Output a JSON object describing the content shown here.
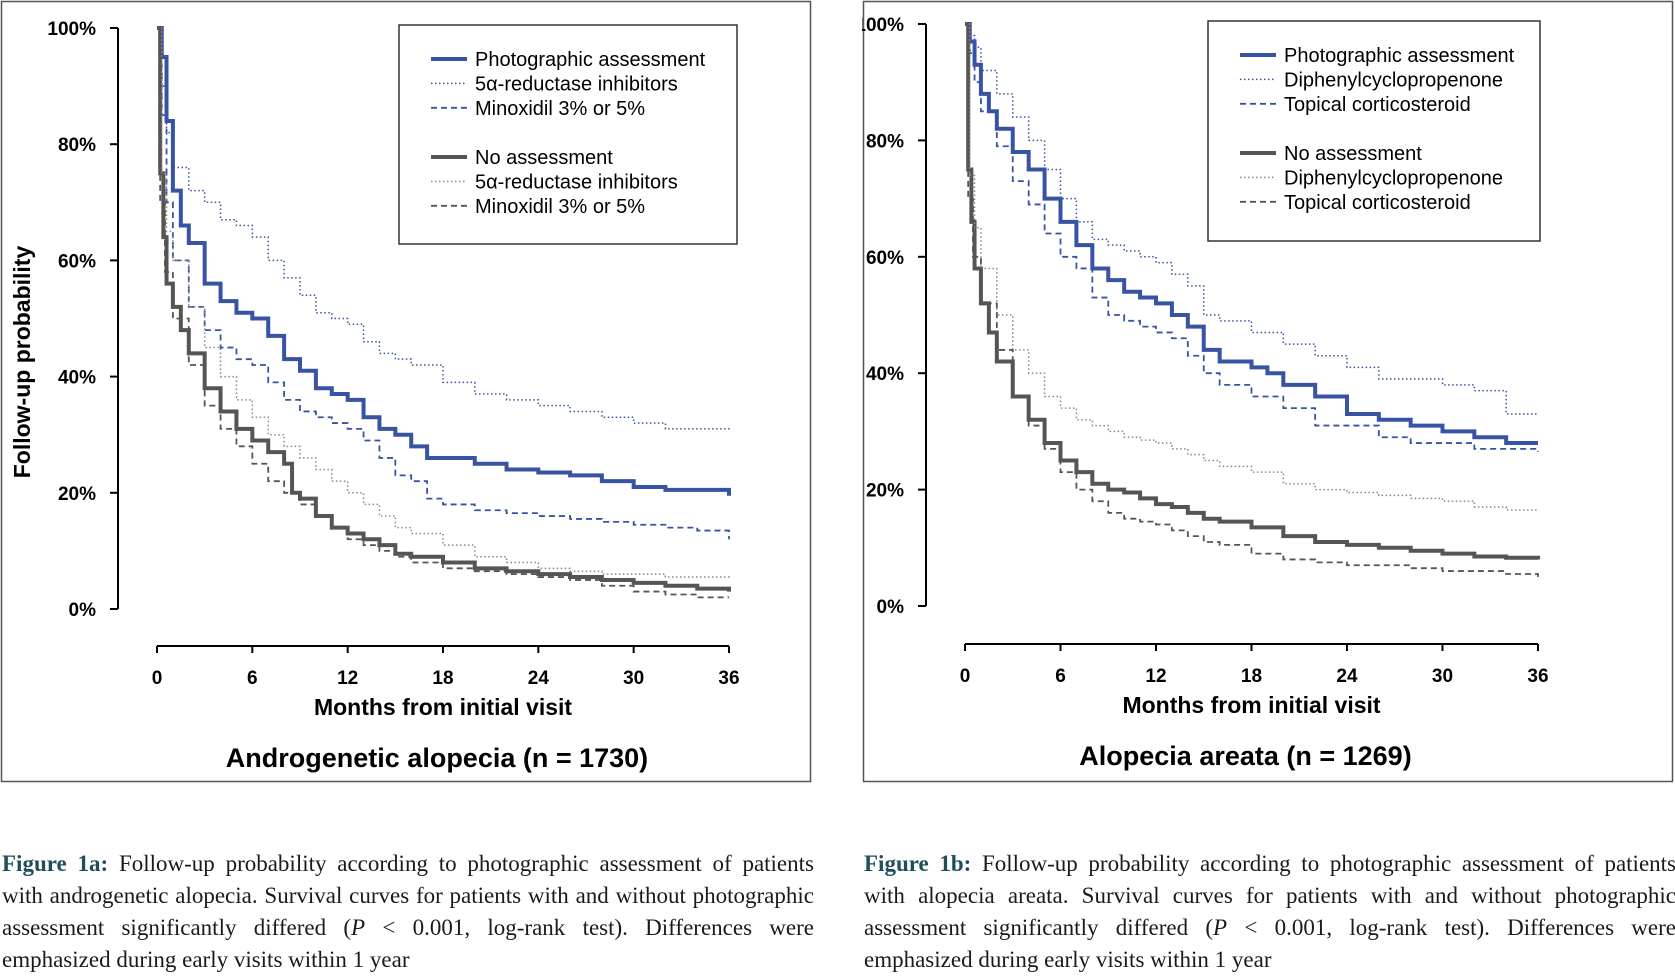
{
  "chart_data": [
    {
      "type": "line",
      "title": "Androgenetic alopecia (n = 1730)",
      "xlabel": "Months from initial visit",
      "ylabel": "Follow-up probability",
      "xlim": [
        0,
        36
      ],
      "ylim": [
        0,
        100
      ],
      "x_ticks": [
        "0",
        "6",
        "12",
        "18",
        "24",
        "30",
        "36"
      ],
      "y_ticks": [
        "0%",
        "20%",
        "40%",
        "60%",
        "80%",
        "100%"
      ],
      "grid": false,
      "legend_position": "top-right",
      "legend_groups": [
        {
          "label": "Photographic assessment",
          "items": [
            "5α-reductase inhibitors",
            "Minoxidil 3% or 5%"
          ]
        },
        {
          "label": "No assessment",
          "items": [
            "5α-reductase inhibitors",
            "Minoxidil 3% or 5%"
          ]
        }
      ],
      "series": [
        {
          "name": "Photographic assessment",
          "color": "#3953a4",
          "style": "solid",
          "width": 4,
          "x": [
            0,
            0.3,
            0.6,
            1,
            1.5,
            2,
            3,
            4,
            5,
            6,
            7,
            8,
            9,
            10,
            11,
            12,
            13,
            14,
            15,
            16,
            17,
            18,
            20,
            22,
            24,
            26,
            28,
            30,
            32,
            34,
            36
          ],
          "y": [
            100,
            95,
            84,
            72,
            66,
            63,
            56,
            53,
            51,
            50,
            47,
            43,
            41,
            38,
            37,
            36,
            33,
            31,
            30,
            28,
            26,
            26,
            25,
            24,
            23.5,
            23,
            22,
            21,
            20.5,
            20.5,
            19.5
          ]
        },
        {
          "name": "5α-reductase inhibitors",
          "color": "#3953a4",
          "style": "dotted",
          "width": 1.5,
          "x": [
            0,
            0.3,
            0.6,
            1,
            2,
            3,
            4,
            5,
            6,
            7,
            8,
            9,
            10,
            11,
            12,
            13,
            14,
            15,
            16,
            18,
            20,
            22,
            24,
            26,
            28,
            30,
            32,
            34,
            36
          ],
          "y": [
            100,
            90,
            82,
            76,
            72,
            70,
            67,
            66,
            64,
            60,
            57,
            54,
            51,
            50,
            49,
            46,
            44,
            43,
            42,
            39,
            37,
            36,
            35,
            34,
            33,
            32,
            31,
            31,
            30.5
          ]
        },
        {
          "name": "Minoxidil 3% or 5%",
          "color": "#3953a4",
          "style": "dashed",
          "width": 1.8,
          "x": [
            0,
            0.3,
            0.6,
            1,
            2,
            3,
            4,
            5,
            6,
            7,
            8,
            9,
            10,
            11,
            12,
            13,
            14,
            15,
            16,
            17,
            18,
            20,
            22,
            24,
            26,
            28,
            30,
            32,
            34,
            36
          ],
          "y": [
            100,
            85,
            70,
            60,
            52,
            48,
            45,
            43,
            42,
            39,
            36,
            34,
            33,
            32,
            31,
            29,
            26,
            23,
            22,
            19,
            18,
            17,
            16.5,
            16,
            15.5,
            15,
            14.5,
            14,
            13.5,
            12
          ]
        },
        {
          "name": "No assessment",
          "color": "#555555",
          "style": "solid",
          "width": 4,
          "x": [
            0,
            0.2,
            0.4,
            0.6,
            1,
            1.5,
            2,
            3,
            4,
            5,
            6,
            7,
            8,
            8.5,
            9,
            10,
            11,
            12,
            13,
            14,
            15,
            16,
            18,
            20,
            22,
            24,
            26,
            28,
            30,
            32,
            34,
            36
          ],
          "y": [
            100,
            75,
            64,
            56,
            52,
            48,
            44,
            38,
            34,
            31,
            29,
            27,
            25,
            20,
            19,
            16,
            14,
            13,
            12,
            11,
            9.5,
            9,
            8,
            7,
            6.5,
            6,
            5.5,
            5,
            4.5,
            4,
            3.5,
            3
          ]
        },
        {
          "name": "5α-reductase inhibitors",
          "color": "#888888",
          "style": "dotted",
          "width": 1.5,
          "x": [
            0,
            0.3,
            0.6,
            1,
            2,
            3,
            4,
            5,
            6,
            7,
            8,
            9,
            10,
            11,
            12,
            13,
            14,
            15,
            16,
            18,
            20,
            22,
            24,
            26,
            28,
            30,
            32,
            34,
            36
          ],
          "y": [
            100,
            75,
            65,
            60,
            52,
            45,
            40,
            36,
            33,
            30,
            28,
            26,
            24,
            22,
            20,
            18,
            16,
            14,
            13,
            11,
            9,
            8,
            7,
            6.5,
            6,
            6,
            5.5,
            5.5,
            5
          ]
        },
        {
          "name": "Minoxidil 3% or 5%",
          "color": "#555555",
          "style": "dashed",
          "width": 1.8,
          "x": [
            0,
            0.2,
            0.5,
            1,
            2,
            3,
            4,
            5,
            6,
            7,
            8,
            9,
            10,
            11,
            12,
            13,
            14,
            15,
            16,
            18,
            20,
            22,
            24,
            26,
            28,
            30,
            32,
            34,
            36
          ],
          "y": [
            100,
            70,
            58,
            50,
            42,
            35,
            31,
            28,
            25,
            22,
            20,
            18,
            16,
            14,
            12,
            11,
            10,
            9,
            8,
            7,
            6.5,
            6,
            5.5,
            5,
            4,
            3,
            2.5,
            2,
            2
          ]
        }
      ]
    },
    {
      "type": "line",
      "title": "Alopecia areata (n = 1269)",
      "xlabel": "Months from initial visit",
      "ylabel": "Follow-up probability",
      "xlim": [
        0,
        36
      ],
      "ylim": [
        0,
        100
      ],
      "x_ticks": [
        "0",
        "6",
        "12",
        "18",
        "24",
        "30",
        "36"
      ],
      "y_ticks": [
        "0%",
        "20%",
        "40%",
        "60%",
        "80%",
        "100%"
      ],
      "grid": false,
      "legend_position": "top-right",
      "legend_groups": [
        {
          "label": "Photographic assessment",
          "items": [
            "Diphenylcyclopropenone",
            "Topical corticosteroid"
          ]
        },
        {
          "label": "No assessment",
          "items": [
            "Diphenylcyclopropenone",
            "Topical corticosteroid"
          ]
        }
      ],
      "series": [
        {
          "name": "Photographic assessment",
          "color": "#3953a4",
          "style": "solid",
          "width": 4,
          "x": [
            0,
            0.3,
            0.6,
            1,
            1.5,
            2,
            3,
            4,
            5,
            6,
            7,
            8,
            9,
            10,
            11,
            12,
            13,
            14,
            15,
            16,
            18,
            19,
            20,
            22,
            24,
            26,
            28,
            30,
            32,
            34,
            36
          ],
          "y": [
            100,
            97,
            93,
            88,
            85,
            82,
            78,
            75,
            70,
            66,
            62,
            58,
            56,
            54,
            53,
            52,
            50,
            48,
            44,
            42,
            41,
            40,
            38,
            36,
            33,
            32,
            31,
            30,
            29,
            28,
            28
          ]
        },
        {
          "name": "Diphenylcyclopropenone",
          "color": "#3953a4",
          "style": "dotted",
          "width": 1.5,
          "x": [
            0,
            0.3,
            0.6,
            1,
            2,
            3,
            4,
            5,
            6,
            7,
            8,
            9,
            10,
            11,
            12,
            13,
            14,
            15,
            16,
            18,
            20,
            22,
            24,
            26,
            28,
            30,
            32,
            34,
            36
          ],
          "y": [
            100,
            98,
            96,
            92,
            88,
            84,
            80,
            75,
            70,
            66,
            63,
            62,
            61,
            60,
            59,
            57,
            55,
            50,
            49,
            47,
            45,
            43,
            41,
            39,
            39,
            38,
            37,
            33,
            33
          ]
        },
        {
          "name": "Topical corticosteroid",
          "color": "#3953a4",
          "style": "dashed",
          "width": 1.8,
          "x": [
            0,
            0.3,
            0.6,
            1,
            2,
            3,
            4,
            5,
            6,
            7,
            8,
            9,
            10,
            11,
            12,
            13,
            14,
            15,
            16,
            18,
            20,
            22,
            24,
            26,
            28,
            30,
            32,
            34,
            36
          ],
          "y": [
            100,
            95,
            90,
            85,
            79,
            73,
            69,
            64,
            60,
            58,
            53,
            50,
            49,
            48,
            47,
            46,
            43,
            40,
            38,
            36,
            34,
            31,
            31,
            29,
            28,
            28,
            27,
            27,
            26.5
          ]
        },
        {
          "name": "No assessment",
          "color": "#555555",
          "style": "solid",
          "width": 4,
          "x": [
            0,
            0.2,
            0.4,
            0.6,
            1,
            1.5,
            2,
            3,
            4,
            5,
            6,
            7,
            8,
            9,
            10,
            11,
            12,
            13,
            14,
            15,
            16,
            18,
            20,
            22,
            24,
            26,
            28,
            30,
            32,
            34,
            36
          ],
          "y": [
            100,
            75,
            66,
            58,
            52,
            47,
            42,
            36,
            32,
            28,
            25,
            23,
            21,
            20,
            19.5,
            18.5,
            17.5,
            17,
            16,
            15,
            14.5,
            13.5,
            12,
            11,
            10.5,
            10,
            9.5,
            9,
            8.5,
            8.3,
            8
          ]
        },
        {
          "name": "Diphenylcyclopropenone",
          "color": "#888888",
          "style": "dotted",
          "width": 1.5,
          "x": [
            0,
            0.3,
            0.6,
            1,
            2,
            3,
            4,
            5,
            6,
            7,
            8,
            9,
            10,
            11,
            12,
            13,
            14,
            15,
            16,
            18,
            20,
            22,
            24,
            26,
            28,
            30,
            32,
            34,
            36
          ],
          "y": [
            100,
            74,
            65,
            58,
            50,
            44,
            40,
            36,
            34,
            32,
            31,
            30,
            29,
            28.5,
            28,
            27,
            26,
            25,
            24,
            23,
            21,
            20,
            19.5,
            19,
            18.5,
            18,
            17,
            16.5,
            16.5
          ]
        },
        {
          "name": "Topical corticosteroid",
          "color": "#555555",
          "style": "dashed",
          "width": 1.8,
          "x": [
            0,
            0.2,
            0.5,
            1,
            2,
            3,
            4,
            5,
            6,
            7,
            8,
            9,
            10,
            11,
            12,
            13,
            14,
            15,
            16,
            18,
            20,
            22,
            24,
            26,
            28,
            30,
            32,
            34,
            36
          ],
          "y": [
            100,
            70,
            60,
            52,
            44,
            36,
            31,
            27,
            23,
            20,
            18,
            16,
            15,
            14.5,
            14,
            13,
            12,
            11,
            10.5,
            9,
            8,
            7.5,
            7,
            7,
            6.5,
            6,
            6,
            5.5,
            5
          ]
        }
      ]
    }
  ],
  "captions": [
    {
      "label": "Figure 1a:",
      "text_before": " Follow-up probability according to photographic assessment of patients with androgenetic alopecia. Survival curves for patients with and without photographic assessment significantly differed (",
      "p": "P",
      "text_after": " < 0.001, log-rank test). Differences were emphasized during early visits within 1 year"
    },
    {
      "label": "Figure 1b:",
      "text_before": " Follow-up probability according to photographic assessment of patients with alopecia areata. Survival curves for patients with and without photographic assessment significantly differed (",
      "p": "P",
      "text_after": " < 0.001, log-rank test). Differences were emphasized during early visits within 1 year"
    }
  ]
}
